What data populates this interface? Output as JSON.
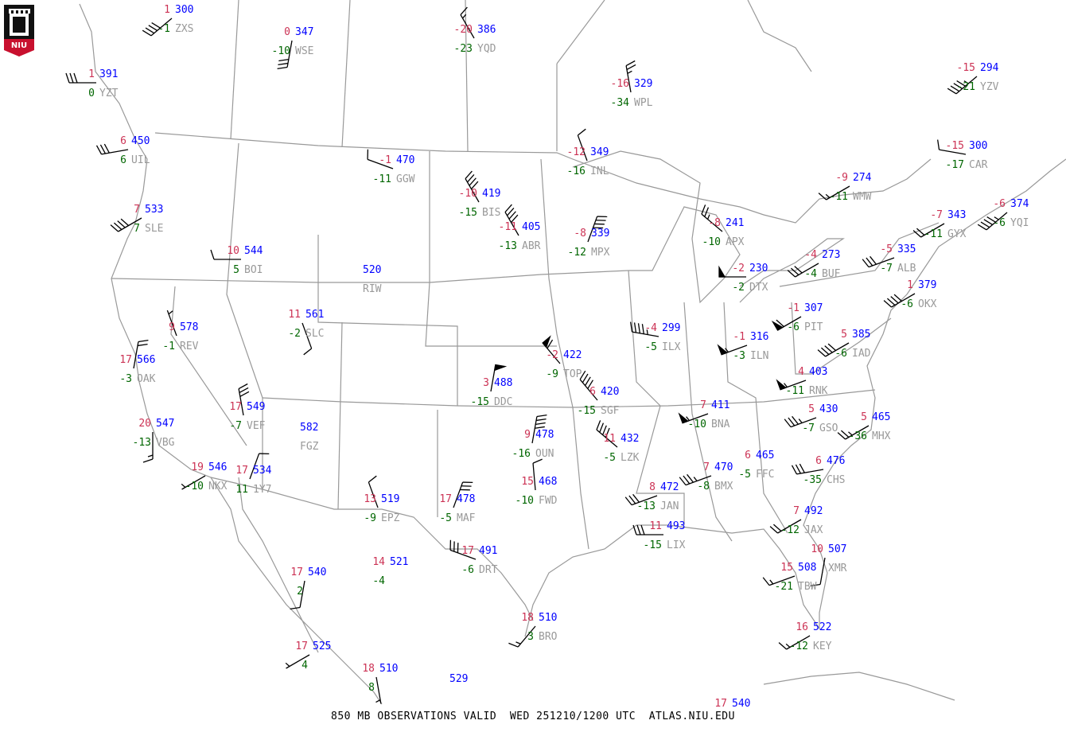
{
  "title": "850 MB OBSERVATIONS VALID  WED 251210/1200 UTC  ATLAS.NIU.EDU",
  "logo_text": "NIU",
  "colors": {
    "temperature": "#cc3355",
    "height": "#0000ff",
    "dewpoint": "#006600",
    "station_id": "#999999",
    "borders": "#999999",
    "barbs": "#000000"
  },
  "legend_fields": {
    "top_left": "temperature (C)",
    "top_right": "height (dam)",
    "bottom_left": "dewpoint (C)",
    "bottom_right": "station id"
  },
  "stations": [
    {
      "id": "ZXS",
      "temp": "1",
      "height": "300",
      "dew": "-1",
      "wind_dir": 230,
      "wind_kt": 40
    },
    {
      "id": "WSE",
      "temp": "0",
      "height": "347",
      "dew": "-10",
      "wind_dir": 190,
      "wind_kt": 30
    },
    {
      "id": "YQD",
      "temp": "-20",
      "height": "386",
      "dew": "-23",
      "wind_dir": 330,
      "wind_kt": 15
    },
    {
      "id": "WPL",
      "temp": "-16",
      "height": "329",
      "dew": "-34",
      "wind_dir": 350,
      "wind_kt": 25
    },
    {
      "id": "YZV",
      "temp": "-15",
      "height": "294",
      "dew": "-21",
      "wind_dir": 230,
      "wind_kt": 45
    },
    {
      "id": "CAR",
      "temp": "-15",
      "height": "300",
      "dew": "-17",
      "wind_dir": 280,
      "wind_kt": 10
    },
    {
      "id": "WMW",
      "temp": "-9",
      "height": "274",
      "dew": "-11",
      "wind_dir": 240,
      "wind_kt": 15
    },
    {
      "id": "YZT",
      "temp": "1",
      "height": "391",
      "dew": "0",
      "wind_dir": 270,
      "wind_kt": 30
    },
    {
      "id": "UIL",
      "temp": "6",
      "height": "450",
      "dew": "6",
      "wind_dir": 260,
      "wind_kt": 30
    },
    {
      "id": "SLE",
      "temp": "7",
      "height": "533",
      "dew": "7",
      "wind_dir": 240,
      "wind_kt": 40
    },
    {
      "id": "GGW",
      "temp": "-1",
      "height": "470",
      "dew": "-11",
      "wind_dir": 290,
      "wind_kt": 10
    },
    {
      "id": "BIS",
      "temp": "-10",
      "height": "419",
      "dew": "-15",
      "wind_dir": 330,
      "wind_kt": 40
    },
    {
      "id": "ABR",
      "temp": "-11",
      "height": "405",
      "dew": "-13",
      "wind_dir": 330,
      "wind_kt": 40
    },
    {
      "id": "INL",
      "temp": "-12",
      "height": "349",
      "dew": "-16",
      "wind_dir": 340,
      "wind_kt": 10
    },
    {
      "id": "MPX",
      "temp": "-8",
      "height": "339",
      "dew": "-12",
      "wind_dir": 20,
      "wind_kt": 40
    },
    {
      "id": "APX",
      "temp": "-8",
      "height": "241",
      "dew": "-10",
      "wind_dir": 310,
      "wind_kt": 25
    },
    {
      "id": "DTX",
      "temp": "-2",
      "height": "230",
      "dew": "-2",
      "wind_dir": 270,
      "wind_kt": 50
    },
    {
      "id": "BUF",
      "temp": "-4",
      "height": "273",
      "dew": "-4",
      "wind_dir": 240,
      "wind_kt": 30
    },
    {
      "id": "ALB",
      "temp": "-5",
      "height": "335",
      "dew": "-7",
      "wind_dir": 250,
      "wind_kt": 30
    },
    {
      "id": "GYX",
      "temp": "-7",
      "height": "343",
      "dew": "-11",
      "wind_dir": 240,
      "wind_kt": 20
    },
    {
      "id": "YQI",
      "temp": "-6",
      "height": "374",
      "dew": "-6",
      "wind_dir": 230,
      "wind_kt": 45
    },
    {
      "id": "BOI",
      "temp": "10",
      "height": "544",
      "dew": "5",
      "wind_dir": 270,
      "wind_kt": 10
    },
    {
      "id": "RIW",
      "temp": "",
      "height": "520",
      "dew": "",
      "wind_dir": null,
      "wind_kt": null
    },
    {
      "id": "SLC",
      "temp": "11",
      "height": "561",
      "dew": "-2",
      "wind_dir": 160,
      "wind_kt": 10
    },
    {
      "id": "REV",
      "temp": "9",
      "height": "578",
      "dew": "-1",
      "wind_dir": 340,
      "wind_kt": 5
    },
    {
      "id": "OAK",
      "temp": "17",
      "height": "566",
      "dew": "-3",
      "wind_dir": 10,
      "wind_kt": 20
    },
    {
      "id": "ILX",
      "temp": "-4",
      "height": "299",
      "dew": "-5",
      "wind_dir": 280,
      "wind_kt": 45
    },
    {
      "id": "TOP",
      "temp": "-2",
      "height": "422",
      "dew": "-9",
      "wind_dir": 320,
      "wind_kt": 60
    },
    {
      "id": "DDC",
      "temp": "3",
      "height": "488",
      "dew": "-15",
      "wind_dir": 10,
      "wind_kt": 50
    },
    {
      "id": "SGF",
      "temp": "6",
      "height": "420",
      "dew": "-15",
      "wind_dir": 320,
      "wind_kt": 40
    },
    {
      "id": "PIT",
      "temp": "-1",
      "height": "307",
      "dew": "-6",
      "wind_dir": 240,
      "wind_kt": 60
    },
    {
      "id": "ILN",
      "temp": "-1",
      "height": "316",
      "dew": "-3",
      "wind_dir": 250,
      "wind_kt": 55
    },
    {
      "id": "OKX",
      "temp": "1",
      "height": "379",
      "dew": "-6",
      "wind_dir": 240,
      "wind_kt": 40
    },
    {
      "id": "IAD",
      "temp": "5",
      "height": "385",
      "dew": "-6",
      "wind_dir": 240,
      "wind_kt": 40
    },
    {
      "id": "RNK",
      "temp": "4",
      "height": "403",
      "dew": "-11",
      "wind_dir": 250,
      "wind_kt": 55
    },
    {
      "id": "GSO",
      "temp": "5",
      "height": "430",
      "dew": "-7",
      "wind_dir": 250,
      "wind_kt": 35
    },
    {
      "id": "MHX",
      "temp": "5",
      "height": "465",
      "dew": "-36",
      "wind_dir": 240,
      "wind_kt": 25
    },
    {
      "id": "BNA",
      "temp": "7",
      "height": "411",
      "dew": "-10",
      "wind_dir": 250,
      "wind_kt": 55
    },
    {
      "id": "LZK",
      "temp": "11",
      "height": "432",
      "dew": "-5",
      "wind_dir": 310,
      "wind_kt": 40
    },
    {
      "id": "OUN",
      "temp": "9",
      "height": "478",
      "dew": "-16",
      "wind_dir": 10,
      "wind_kt": 40
    },
    {
      "id": "FWD",
      "temp": "15",
      "height": "468",
      "dew": "-10",
      "wind_dir": 355,
      "wind_kt": 10
    },
    {
      "id": "EPZ",
      "temp": "13",
      "height": "519",
      "dew": "-9",
      "wind_dir": 340,
      "wind_kt": 10
    },
    {
      "id": "MAF",
      "temp": "17",
      "height": "478",
      "dew": "-5",
      "wind_dir": 20,
      "wind_kt": 30
    },
    {
      "id": "DRT",
      "temp": "17",
      "height": "491",
      "dew": "-6",
      "wind_dir": 290,
      "wind_kt": 30
    },
    {
      "id": "BRO",
      "temp": "18",
      "height": "510",
      "dew": "3",
      "wind_dir": 220,
      "wind_kt": 15
    },
    {
      "id": "JAN",
      "temp": "8",
      "height": "472",
      "dew": "-13",
      "wind_dir": 250,
      "wind_kt": 30
    },
    {
      "id": "BMX",
      "temp": "7",
      "height": "470",
      "dew": "-8",
      "wind_dir": 250,
      "wind_kt": 35
    },
    {
      "id": "FFC",
      "temp": "6",
      "height": "465",
      "dew": "-5",
      "wind_dir": null,
      "wind_kt": null
    },
    {
      "id": "CHS",
      "temp": "6",
      "height": "476",
      "dew": "-35",
      "wind_dir": 260,
      "wind_kt": 30
    },
    {
      "id": "JAX",
      "temp": "7",
      "height": "492",
      "dew": "-12",
      "wind_dir": 240,
      "wind_kt": 20
    },
    {
      "id": "LIX",
      "temp": "11",
      "height": "493",
      "dew": "-15",
      "wind_dir": 270,
      "wind_kt": 30
    },
    {
      "id": "XMR",
      "temp": "10",
      "height": "507",
      "dew": "",
      "wind_dir": 190,
      "wind_kt": 10
    },
    {
      "id": "TBW",
      "temp": "15",
      "height": "508",
      "dew": "-21",
      "wind_dir": 250,
      "wind_kt": 15
    },
    {
      "id": "KEY",
      "temp": "16",
      "height": "522",
      "dew": "-12",
      "wind_dir": 240,
      "wind_kt": 15
    },
    {
      "id": "VEF",
      "temp": "17",
      "height": "549",
      "dew": "-7",
      "wind_dir": 350,
      "wind_kt": 30
    },
    {
      "id": "VBG",
      "temp": "20",
      "height": "547",
      "dew": "-13",
      "wind_dir": 180,
      "wind_kt": 15
    },
    {
      "id": "FGZ",
      "temp": "",
      "height": "582",
      "dew": "",
      "wind_dir": null,
      "wind_kt": null
    },
    {
      "id": "NKX",
      "temp": "19",
      "height": "546",
      "dew": "-10",
      "wind_dir": 240,
      "wind_kt": 5
    },
    {
      "id": "1Y7",
      "temp": "17",
      "height": "534",
      "dew": "11",
      "wind_dir": 20,
      "wind_kt": 10
    },
    {
      "id": "",
      "temp": "17",
      "height": "540",
      "dew": "2",
      "wind_dir": 190,
      "wind_kt": 10
    },
    {
      "id": "",
      "temp": "14",
      "height": "521",
      "dew": "-4",
      "wind_dir": null,
      "wind_kt": null
    },
    {
      "id": "",
      "temp": "17",
      "height": "525",
      "dew": "4",
      "wind_dir": 240,
      "wind_kt": 5
    },
    {
      "id": "",
      "temp": "18",
      "height": "510",
      "dew": "8",
      "wind_dir": 170,
      "wind_kt": 5
    },
    {
      "id": "",
      "temp": "",
      "height": "529",
      "dew": "",
      "wind_dir": null,
      "wind_kt": null
    },
    {
      "id": "",
      "temp": "17",
      "height": "540",
      "dew": "",
      "wind_dir": null,
      "wind_kt": null
    }
  ]
}
